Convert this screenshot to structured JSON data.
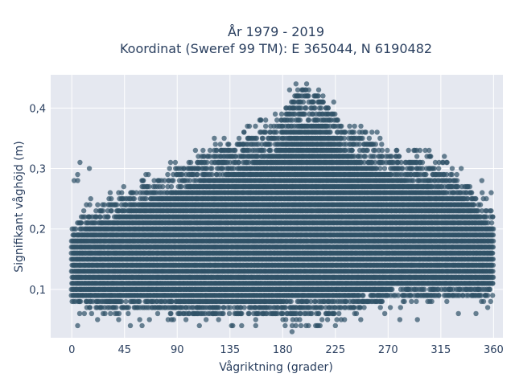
{
  "chart_data": {
    "type": "scatter",
    "title_line1": "År 1979 - 2019",
    "title_line2": "Koordinat (Sweref 99 TM): E 365044, N 6190482",
    "xlabel": "Vågriktning (grader)",
    "ylabel": "Signifikant våghöjd (m)",
    "xlim": [
      -18,
      368
    ],
    "ylim": [
      0.02,
      0.455
    ],
    "x_ticks": [
      0,
      45,
      90,
      135,
      180,
      225,
      270,
      315,
      360
    ],
    "x_tick_labels": [
      "0",
      "45",
      "90",
      "135",
      "180",
      "225",
      "270",
      "315",
      "360"
    ],
    "y_ticks": [
      0.1,
      0.2,
      0.3,
      0.4
    ],
    "y_tick_labels": [
      "0,1",
      "0,2",
      "0,3",
      "0,4"
    ],
    "grid": true,
    "marker_color": "#2f5167",
    "marker_opacity": 0.7,
    "y_resolution": 0.01,
    "envelope": {
      "x": [
        0,
        10,
        20,
        30,
        40,
        50,
        60,
        70,
        80,
        90,
        100,
        110,
        120,
        130,
        140,
        150,
        160,
        170,
        180,
        185,
        190,
        195,
        200,
        205,
        210,
        215,
        220,
        225,
        230,
        240,
        250,
        260,
        270,
        280,
        290,
        300,
        310,
        320,
        330,
        340,
        350,
        360
      ],
      "y_min": [
        0.08,
        0.075,
        0.07,
        0.065,
        0.065,
        0.065,
        0.065,
        0.065,
        0.065,
        0.06,
        0.06,
        0.058,
        0.056,
        0.055,
        0.054,
        0.053,
        0.053,
        0.053,
        0.053,
        0.052,
        0.052,
        0.052,
        0.053,
        0.054,
        0.055,
        0.056,
        0.058,
        0.06,
        0.062,
        0.065,
        0.07,
        0.075,
        0.08,
        0.085,
        0.088,
        0.09,
        0.09,
        0.09,
        0.09,
        0.09,
        0.09,
        0.09
      ],
      "y_max": [
        0.2,
        0.22,
        0.23,
        0.24,
        0.25,
        0.26,
        0.27,
        0.28,
        0.29,
        0.3,
        0.31,
        0.32,
        0.33,
        0.33,
        0.34,
        0.35,
        0.36,
        0.37,
        0.39,
        0.41,
        0.42,
        0.43,
        0.43,
        0.42,
        0.42,
        0.41,
        0.4,
        0.39,
        0.37,
        0.36,
        0.35,
        0.34,
        0.33,
        0.32,
        0.31,
        0.31,
        0.3,
        0.29,
        0.28,
        0.27,
        0.24,
        0.22
      ]
    },
    "outliers": [
      {
        "x": 2,
        "y": 0.28
      },
      {
        "x": 5,
        "y": 0.28
      },
      {
        "x": 7,
        "y": 0.31
      },
      {
        "x": 5,
        "y": 0.29
      },
      {
        "x": 15,
        "y": 0.3
      },
      {
        "x": 5,
        "y": 0.04
      },
      {
        "x": 22,
        "y": 0.05
      },
      {
        "x": 40,
        "y": 0.05
      },
      {
        "x": 50,
        "y": 0.04
      },
      {
        "x": 60,
        "y": 0.04
      },
      {
        "x": 145,
        "y": 0.04
      },
      {
        "x": 188,
        "y": 0.03
      },
      {
        "x": 200,
        "y": 0.04
      },
      {
        "x": 225,
        "y": 0.04
      },
      {
        "x": 280,
        "y": 0.05
      },
      {
        "x": 295,
        "y": 0.05
      },
      {
        "x": 330,
        "y": 0.06
      },
      {
        "x": 345,
        "y": 0.06
      },
      {
        "x": 355,
        "y": 0.07
      },
      {
        "x": 358,
        "y": 0.26
      },
      {
        "x": 350,
        "y": 0.28
      },
      {
        "x": 318,
        "y": 0.32
      },
      {
        "x": 305,
        "y": 0.33
      },
      {
        "x": 100,
        "y": 0.31
      },
      {
        "x": 108,
        "y": 0.32
      },
      {
        "x": 118,
        "y": 0.33
      }
    ]
  }
}
